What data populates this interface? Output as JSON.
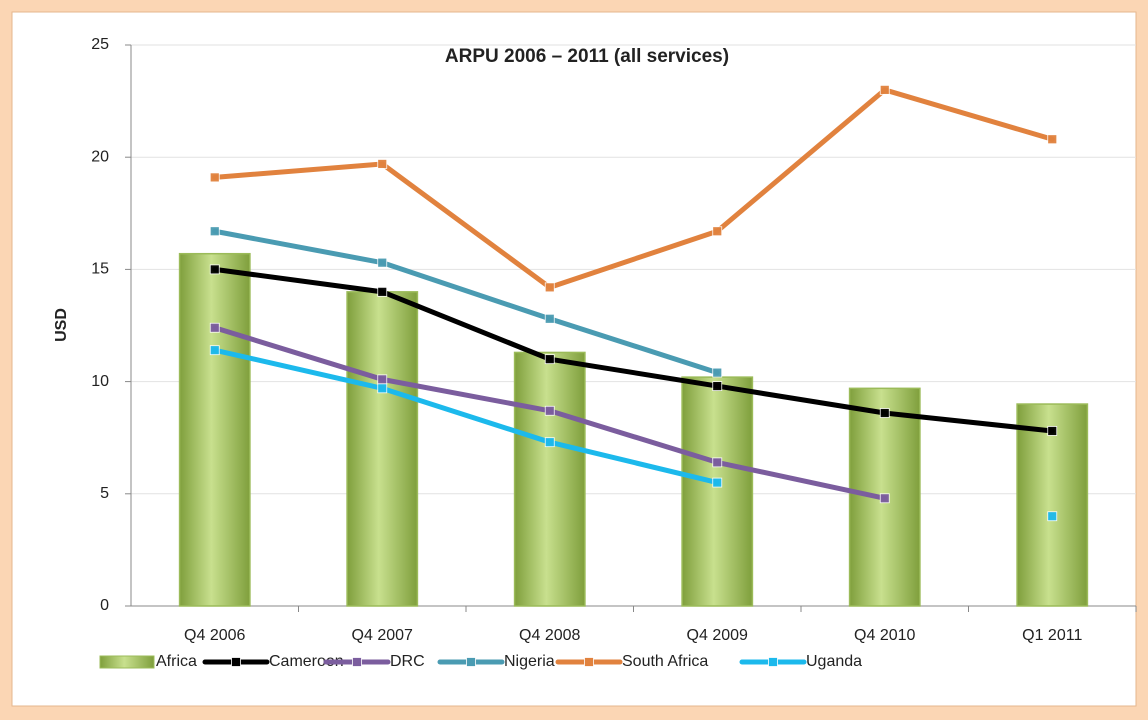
{
  "chart_data": {
    "type": "bar",
    "title": "ARPU 2006 – 2011 (all services)",
    "y_label": "USD",
    "categories": [
      "Q4 2006",
      "Q4 2007",
      "Q4 2008",
      "Q4 2009",
      "Q4 2010",
      "Q1 2011"
    ],
    "series": [
      {
        "name": "Africa",
        "type": "bar",
        "color": "#9bbb59",
        "values": [
          15.7,
          14.0,
          11.3,
          10.2,
          9.7,
          9.0
        ]
      },
      {
        "name": "Cameroon",
        "type": "line",
        "color": "#000000",
        "values": [
          15.0,
          14.0,
          11.0,
          9.8,
          8.6,
          7.8
        ]
      },
      {
        "name": "DRC",
        "type": "line",
        "color": "#7b5d9e",
        "values": [
          12.4,
          10.1,
          8.7,
          6.4,
          4.8,
          null
        ]
      },
      {
        "name": "Nigeria",
        "type": "line",
        "color": "#4a9bb2",
        "values": [
          16.7,
          15.3,
          12.8,
          10.4,
          null,
          null
        ]
      },
      {
        "name": "South Africa",
        "type": "line",
        "color": "#e1823e",
        "values": [
          19.1,
          19.7,
          14.2,
          16.7,
          23.0,
          20.8
        ]
      },
      {
        "name": "Uganda",
        "type": "line",
        "color": "#1cb9ec",
        "values": [
          11.4,
          9.7,
          7.3,
          5.5,
          null,
          4.0
        ]
      }
    ],
    "ylim": [
      0,
      25
    ],
    "yticks": [
      0,
      5,
      10,
      15,
      20,
      25
    ],
    "grid": true,
    "legend": "bottom"
  }
}
